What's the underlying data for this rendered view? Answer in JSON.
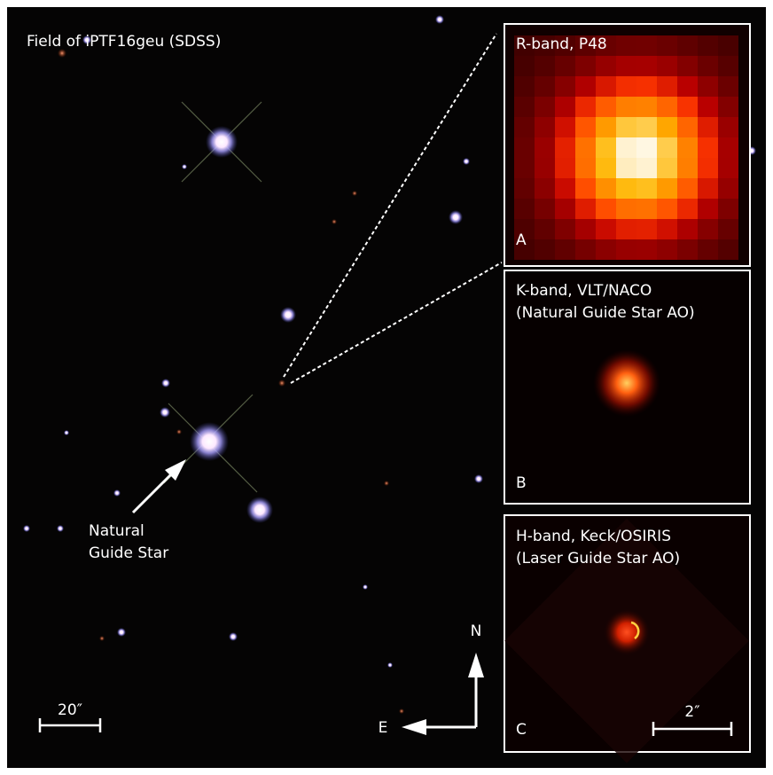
{
  "figure": {
    "title": "Field of iPTF16geu (SDSS)",
    "guide_star_label": [
      "Natural",
      "Guide Star"
    ],
    "scale_bar": "20″",
    "compass": {
      "north": "N",
      "east": "E"
    },
    "panels": [
      {
        "title_lines": [
          "R-band, P48"
        ],
        "letter": "A"
      },
      {
        "title_lines": [
          "K-band, VLT/NACO",
          "(Natural Guide Star AO)"
        ],
        "letter": "B"
      },
      {
        "title_lines": [
          "H-band, Keck/OSIRIS",
          "(Laser Guide Star AO)"
        ],
        "letter": "C",
        "scale_bar": "2″"
      }
    ]
  }
}
